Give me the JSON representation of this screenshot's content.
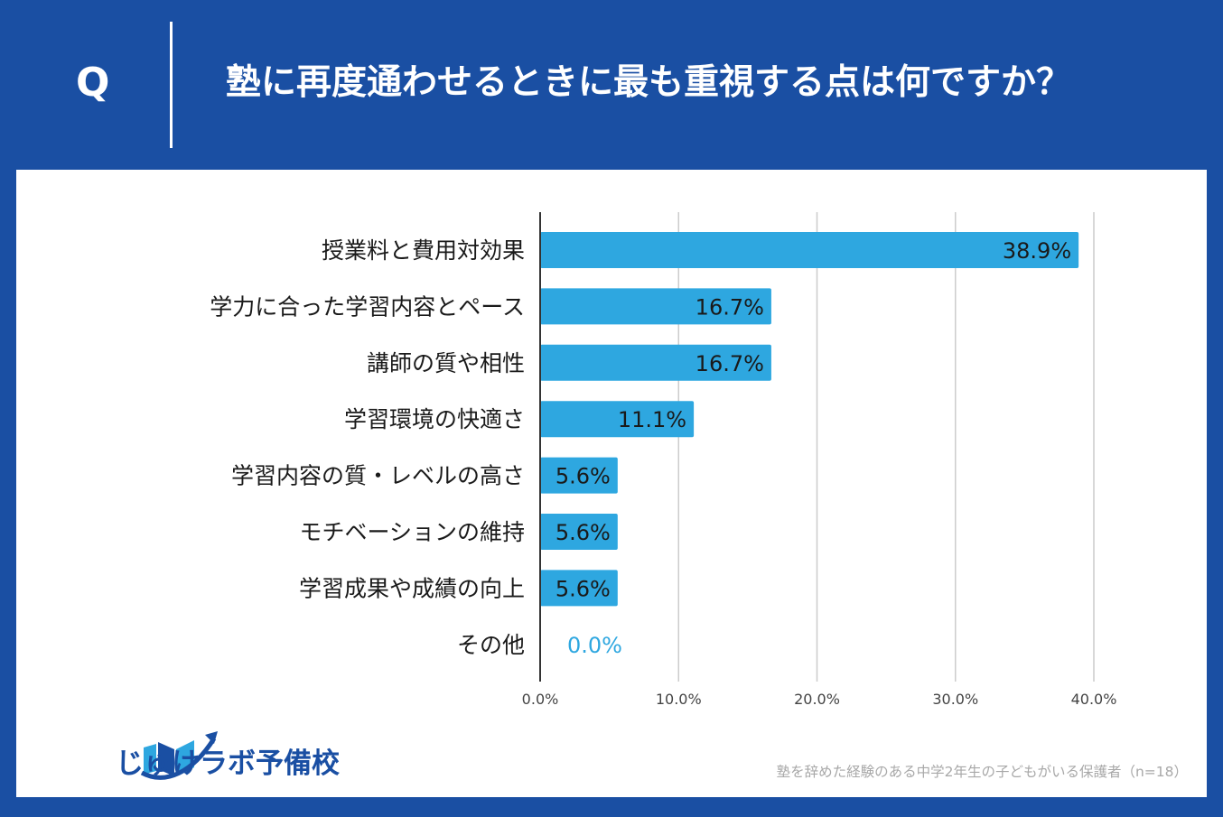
{
  "header": {
    "q_label": "Q",
    "question": "塾に再度通わせるときに最も重視する点は何ですか？"
  },
  "colors": {
    "background": "#1a4fa3",
    "bar": "#2ea7e0",
    "zero_label": "#2ea7e0",
    "grid": "#cccccc"
  },
  "chart_data": {
    "type": "bar",
    "orientation": "horizontal",
    "categories": [
      "授業料と費用対効果",
      "学力に合った学習内容とペース",
      "講師の質や相性",
      "学習環境の快適さ",
      "学習内容の質・レベルの高さ",
      "モチベーションの維持",
      "学習成果や成績の向上",
      "その他"
    ],
    "values": [
      38.9,
      16.7,
      16.7,
      11.1,
      5.6,
      5.6,
      5.6,
      0.0
    ],
    "value_labels": [
      "38.9%",
      "16.7%",
      "16.7%",
      "11.1%",
      "5.6%",
      "5.6%",
      "5.6%",
      "0.0%"
    ],
    "xlim": [
      0,
      40
    ],
    "xticks": [
      0,
      10,
      20,
      30,
      40
    ],
    "xtick_labels": [
      "0.0%",
      "10.0%",
      "20.0%",
      "30.0%",
      "40.0%"
    ],
    "grid": true
  },
  "logo": {
    "text": "じゅけラボ予備校"
  },
  "footnote": "塾を辞めた経験のある中学2年生の子どもがいる保護者（n=18）"
}
